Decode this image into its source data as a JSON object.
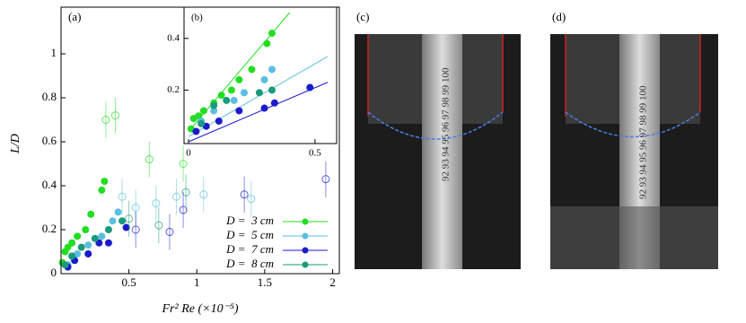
{
  "chart_data": [
    {
      "type": "scatter",
      "annotation": "(a)",
      "xlabel": "Fr² Re (×10⁻⁵)",
      "ylabel": "L/D",
      "xlim": [
        0,
        2.05
      ],
      "ylim": [
        0,
        1.2
      ],
      "xticks": [
        0.5,
        1,
        1.5,
        2
      ],
      "yticks": [
        0,
        0.2,
        0.4,
        0.6,
        0.8,
        1
      ],
      "legend": "lower right",
      "series": [
        {
          "name": "D =  3 cm",
          "color": "#22dd22",
          "x": [
            0.01,
            0.03,
            0.05,
            0.08,
            0.12,
            0.18,
            0.22,
            0.3,
            0.32
          ],
          "values": [
            0.05,
            0.1,
            0.12,
            0.14,
            0.17,
            0.2,
            0.27,
            0.38,
            0.42
          ],
          "open_x": [
            0.33,
            0.4,
            0.65,
            0.9
          ],
          "open_values": [
            0.7,
            0.72,
            0.52,
            0.5
          ]
        },
        {
          "name": "D =  5 cm",
          "color": "#5bbfe0",
          "x": [
            0.05,
            0.12,
            0.2,
            0.3,
            0.38,
            0.42
          ],
          "values": [
            0.04,
            0.09,
            0.13,
            0.17,
            0.24,
            0.28
          ],
          "open_x": [
            0.45,
            0.55,
            0.7,
            0.85,
            1.05,
            1.4
          ],
          "open_values": [
            0.35,
            0.3,
            0.32,
            0.35,
            0.36,
            0.34
          ]
        },
        {
          "name": "D =  7 cm",
          "color": "#1a1acc",
          "x": [
            0.05,
            0.1,
            0.2,
            0.28,
            0.35,
            0.48
          ],
          "values": [
            0.03,
            0.06,
            0.09,
            0.14,
            0.14,
            0.21
          ],
          "open_x": [
            0.55,
            0.8,
            0.9,
            1.35,
            1.95
          ],
          "open_values": [
            0.2,
            0.19,
            0.29,
            0.36,
            0.43
          ]
        },
        {
          "name": "D =  8 cm",
          "color": "#1a9a7a",
          "x": [
            0.03,
            0.08,
            0.15,
            0.25,
            0.35,
            0.45
          ],
          "values": [
            0.04,
            0.08,
            0.12,
            0.16,
            0.2,
            0.24
          ],
          "open_x": [
            0.5,
            0.72,
            0.92
          ],
          "open_values": [
            0.25,
            0.22,
            0.37
          ]
        }
      ]
    },
    {
      "type": "scatter",
      "annotation": "(b)",
      "xlim": [
        0,
        0.55
      ],
      "ylim": [
        0,
        0.5
      ],
      "xticks": [
        0,
        0.5
      ],
      "yticks": [
        0.2,
        0.4
      ],
      "series": [
        {
          "color": "#22dd22",
          "x": [
            0.01,
            0.02,
            0.04,
            0.06,
            0.1,
            0.13,
            0.17,
            0.2,
            0.25,
            0.31,
            0.33
          ],
          "values": [
            0.05,
            0.09,
            0.1,
            0.12,
            0.15,
            0.18,
            0.2,
            0.24,
            0.28,
            0.38,
            0.42
          ],
          "fit_x": [
            0,
            0.4
          ],
          "fit_y": [
            0.04,
            0.5
          ]
        },
        {
          "color": "#5bbfe0",
          "x": [
            0.05,
            0.1,
            0.18,
            0.22,
            0.3,
            0.33
          ],
          "values": [
            0.08,
            0.12,
            0.16,
            0.19,
            0.24,
            0.28
          ],
          "fit_x": [
            0,
            0.55
          ],
          "fit_y": [
            0.02,
            0.33
          ]
        },
        {
          "color": "#1a1acc",
          "x": [
            0.03,
            0.07,
            0.12,
            0.2,
            0.3,
            0.34,
            0.48
          ],
          "values": [
            0.04,
            0.06,
            0.08,
            0.12,
            0.13,
            0.15,
            0.21
          ],
          "fit_x": [
            0,
            0.55
          ],
          "fit_y": [
            0,
            0.23
          ]
        },
        {
          "color": "#1a9a7a",
          "x": [
            0.05,
            0.1,
            0.15,
            0.28,
            0.33
          ],
          "values": [
            0.07,
            0.14,
            0.16,
            0.19,
            0.2
          ]
        }
      ]
    }
  ],
  "photos": [
    {
      "label": "(c)",
      "ruler_text": "92 93 94 95 96 97 98 99 100"
    },
    {
      "label": "(d)",
      "ruler_text": "92 93 94 95 96 97 98 99 100"
    }
  ]
}
